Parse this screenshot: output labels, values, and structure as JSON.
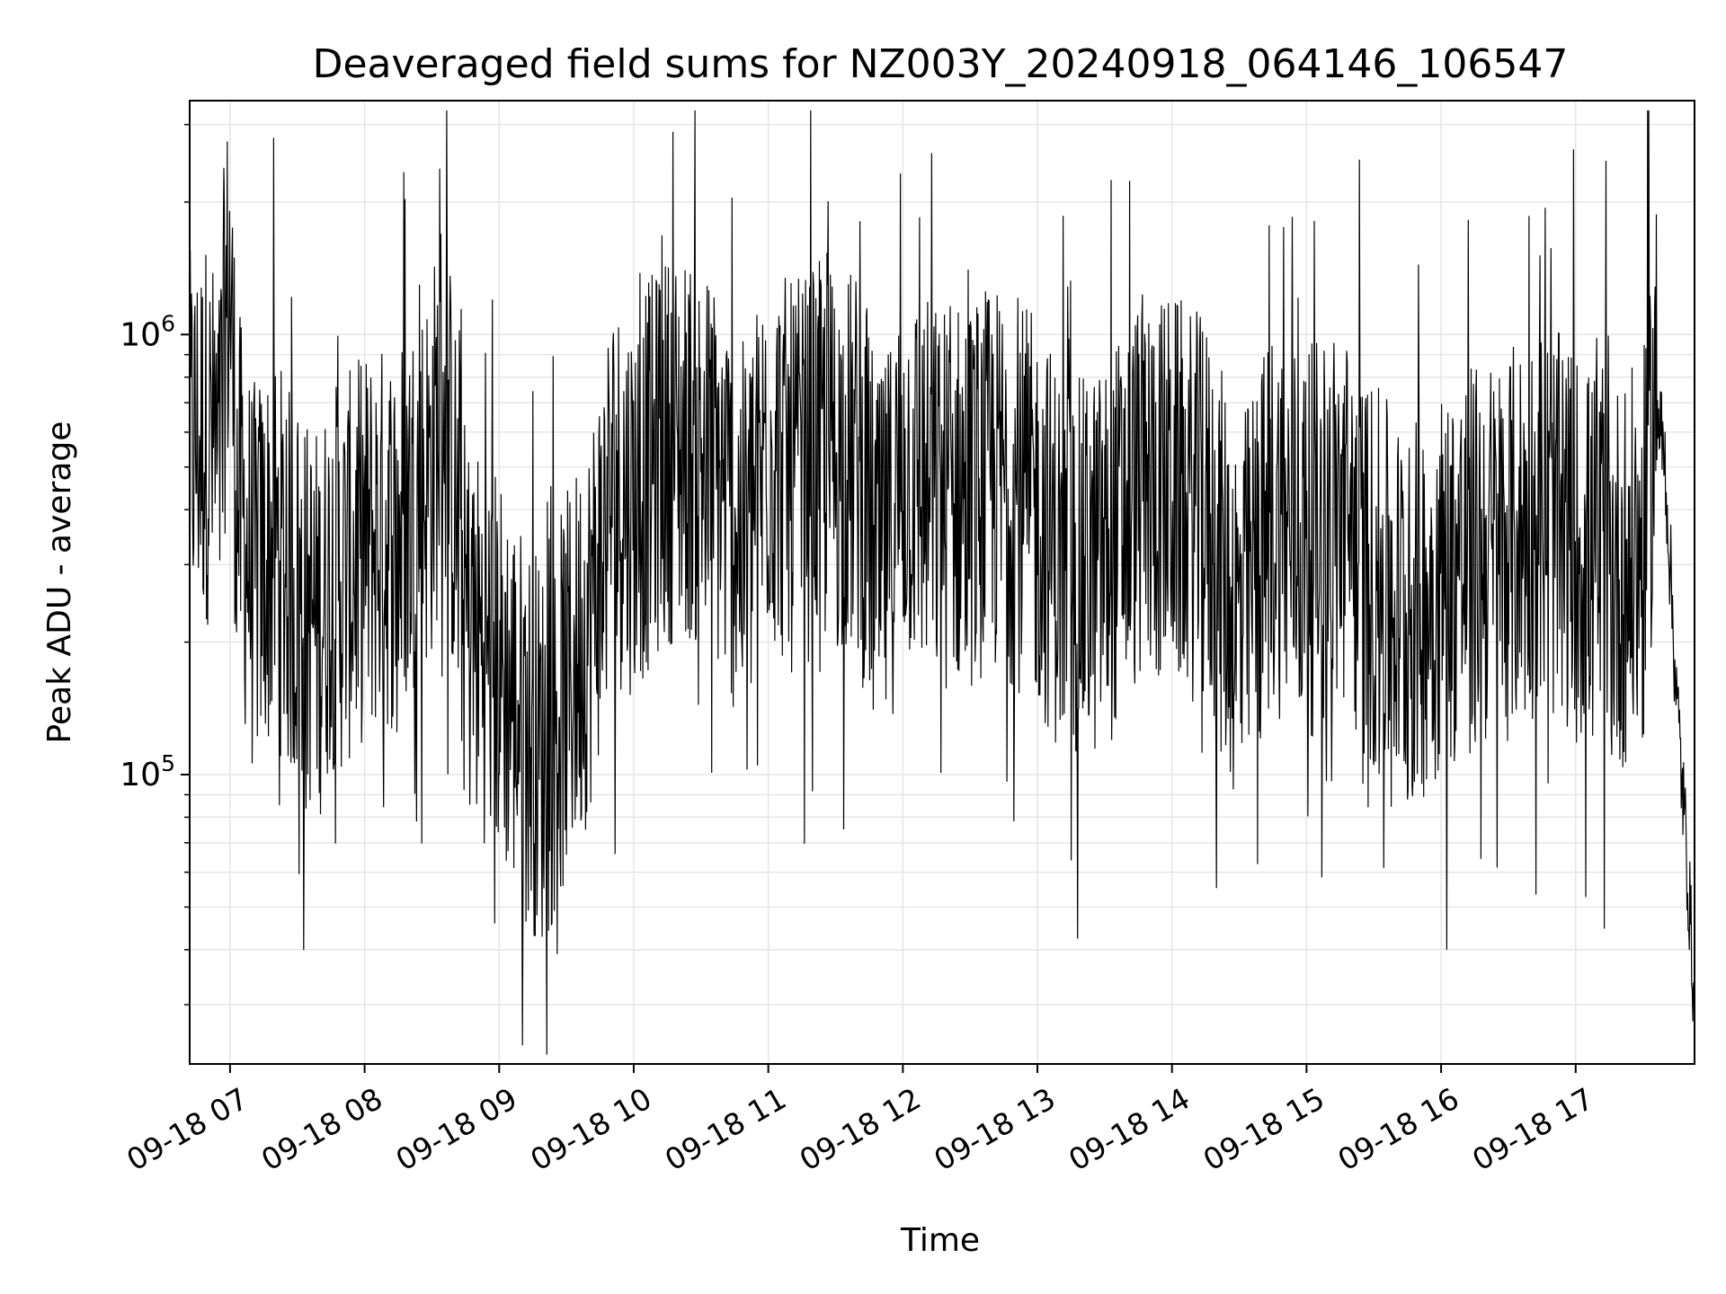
{
  "chart_data": {
    "type": "line",
    "title": "Deaveraged field sums for NZ003Y_20240918_064146_106547",
    "xlabel": "Time",
    "ylabel": "Peak ADU - average",
    "xlim": [
      "2024-09-18 06:42",
      "2024-09-18 17:53"
    ],
    "ylim": [
      22000,
      3400000
    ],
    "yscale": "log",
    "grid": true,
    "line_color": "#000000",
    "grid_color": "#e6e6e6",
    "x_ticks": [
      "09-18 07",
      "09-18 08",
      "09-18 09",
      "09-18 10",
      "09-18 11",
      "09-18 12",
      "09-18 13",
      "09-18 14",
      "09-18 15",
      "09-18 16",
      "09-18 17"
    ],
    "y_ticks": [
      {
        "base": "10",
        "exp": "5"
      },
      {
        "base": "10",
        "exp": "6"
      }
    ],
    "series": [
      {
        "x": [
          "2024-09-18 06:42",
          "2024-09-18 06:50",
          "2024-09-18 06:55",
          "2024-09-18 06:58",
          "2024-09-18 07:00",
          "2024-09-18 07:03",
          "2024-09-18 07:10",
          "2024-09-18 07:20",
          "2024-09-18 07:30",
          "2024-09-18 07:40",
          "2024-09-18 07:45",
          "2024-09-18 07:50",
          "2024-09-18 08:00",
          "2024-09-18 08:15",
          "2024-09-18 08:30",
          "2024-09-18 08:35",
          "2024-09-18 08:45",
          "2024-09-18 09:00",
          "2024-09-18 09:10",
          "2024-09-18 09:20",
          "2024-09-18 09:30",
          "2024-09-18 09:40",
          "2024-09-18 09:50",
          "2024-09-18 10:00",
          "2024-09-18 10:15",
          "2024-09-18 10:25",
          "2024-09-18 10:35",
          "2024-09-18 10:50",
          "2024-09-18 11:00",
          "2024-09-18 11:10",
          "2024-09-18 11:25",
          "2024-09-18 11:40",
          "2024-09-18 11:50",
          "2024-09-18 12:00",
          "2024-09-18 12:15",
          "2024-09-18 12:30",
          "2024-09-18 12:45",
          "2024-09-18 13:00",
          "2024-09-18 13:15",
          "2024-09-18 13:30",
          "2024-09-18 13:45",
          "2024-09-18 14:00",
          "2024-09-18 14:15",
          "2024-09-18 14:30",
          "2024-09-18 14:45",
          "2024-09-18 15:00",
          "2024-09-18 15:15",
          "2024-09-18 15:30",
          "2024-09-18 15:45",
          "2024-09-18 16:00",
          "2024-09-18 16:15",
          "2024-09-18 16:30",
          "2024-09-18 16:45",
          "2024-09-18 17:00",
          "2024-09-18 17:15",
          "2024-09-18 17:30",
          "2024-09-18 17:36",
          "2024-09-18 17:40",
          "2024-09-18 17:45",
          "2024-09-18 17:50",
          "2024-09-18 17:53"
        ],
        "y": [
          500000,
          550000,
          420000,
          950000,
          1200000,
          400000,
          250000,
          300000,
          220000,
          200000,
          260000,
          250000,
          300000,
          320000,
          450000,
          700000,
          200000,
          160000,
          120000,
          100000,
          140000,
          200000,
          400000,
          380000,
          500000,
          500000,
          450000,
          300000,
          500000,
          420000,
          480000,
          450000,
          250000,
          450000,
          380000,
          400000,
          420000,
          350000,
          250000,
          280000,
          400000,
          400000,
          350000,
          200000,
          350000,
          300000,
          350000,
          250000,
          200000,
          250000,
          280000,
          300000,
          350000,
          300000,
          250000,
          280000,
          700000,
          500000,
          150000,
          60000,
          30000
        ]
      }
    ]
  }
}
